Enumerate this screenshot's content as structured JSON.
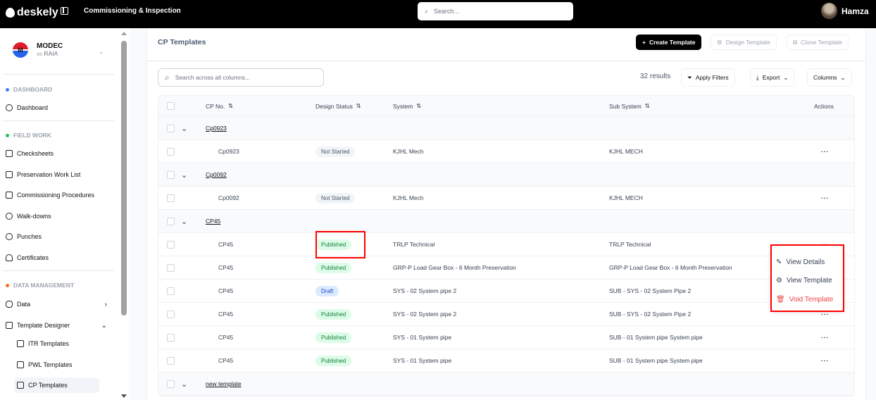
{
  "topbar": {
    "brand": "deskely",
    "app_title": "Commissioning & Inspection",
    "search_placeholder": "Search...",
    "user_name": "Hamza"
  },
  "sidebar": {
    "org_name": "MODEC",
    "org_project": "RAIA",
    "org_logo_letter": "M",
    "sections": [
      {
        "label": "DASHBOARD",
        "color": "#3b82f6"
      },
      {
        "label": "FIELD WORK",
        "color": "#22c55e"
      },
      {
        "label": "DATA MANAGEMENT",
        "color": "#f97316"
      }
    ],
    "items": [
      "Dashboard",
      "Checksheets",
      "Preservation Work List",
      "Commissioning Procedures",
      "Walk-downs",
      "Punches",
      "Certificates",
      "Data",
      "Template Designer",
      "ITR Templates",
      "PWL Templates",
      "CP Templates"
    ]
  },
  "page": {
    "title": "CP Templates",
    "create_label": "Create Template",
    "design_label": "Design Template",
    "clone_label": "Clone Template",
    "search_placeholder": "Search across all columns...",
    "results": "32 results",
    "filters_label": "Apply Filters",
    "export_label": "Export",
    "columns_label": "Columns"
  },
  "table": {
    "headers": [
      "CP No.",
      "Design Status",
      "System",
      "Sub System",
      "Actions"
    ],
    "groups": [
      "Cp0923",
      "Cp0092",
      "CP45",
      "new template"
    ],
    "rows": [
      {
        "cp": "Cp0923",
        "status": "Not Started",
        "system": "KJHL Mech",
        "sub": "KJHL MECH"
      },
      {
        "cp": "Cp0092",
        "status": "Not Started",
        "system": "KJHL Mech",
        "sub": "KJHL MECH"
      },
      {
        "cp": "CP45",
        "status": "Published",
        "system": "TRLP Technical",
        "sub": "TRLP Technical"
      },
      {
        "cp": "CP45",
        "status": "Published",
        "system": "GRP-P Load Gear Box - 6 Month Preservation",
        "sub": "GRP-P Load Gear Box - 6 Month Preservation"
      },
      {
        "cp": "CP45",
        "status": "Draft",
        "system": "SYS - 02 System pipe 2",
        "sub": "SUB - SYS - 02 System Pipe 2"
      },
      {
        "cp": "CP45",
        "status": "Published",
        "system": "SYS - 02 System pipe 2",
        "sub": "SUB - SYS - 02 System Pipe 2"
      },
      {
        "cp": "CP45",
        "status": "Published",
        "system": "SYS - 01 System pipe",
        "sub": "SUB - 01 System pipe System pipe"
      },
      {
        "cp": "CP45",
        "status": "Published",
        "system": "SYS - 01 System pipe",
        "sub": "SUB - 01 System pipe System pipe"
      }
    ]
  },
  "menu": {
    "items": [
      "View Details",
      "View Template",
      "Void Template"
    ]
  }
}
